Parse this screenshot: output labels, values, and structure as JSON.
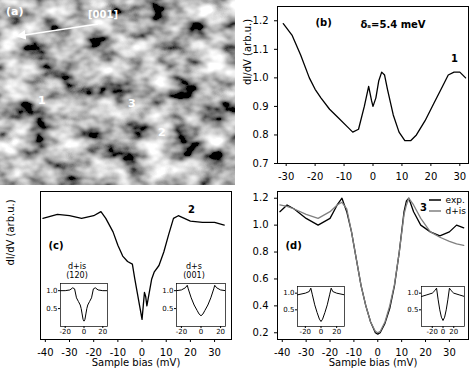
{
  "chart_data": [
    {
      "type": "image",
      "panel_label": "(a)",
      "direction_label": "[001]",
      "point_labels": [
        "1",
        "3",
        "2"
      ]
    },
    {
      "type": "line",
      "panel_label": "(b)",
      "annotation": "δₛ=5.4 meV",
      "curve_label": "1",
      "ylabel": "dI/dV (arb.u.)",
      "color": "#000000",
      "x": [
        -31,
        -28,
        -25,
        -22,
        -20,
        -18,
        -15,
        -12,
        -9,
        -7,
        -5,
        -3,
        -1.5,
        -0.5,
        0,
        1,
        2,
        3,
        4,
        5,
        7,
        9,
        11,
        13,
        15,
        18,
        21,
        24,
        26,
        28,
        30,
        32
      ],
      "values": [
        1.19,
        1.15,
        1.08,
        1.0,
        0.96,
        0.93,
        0.89,
        0.86,
        0.83,
        0.81,
        0.82,
        0.9,
        0.97,
        0.92,
        0.9,
        0.93,
        0.99,
        1.02,
        1.01,
        0.96,
        0.87,
        0.81,
        0.78,
        0.78,
        0.8,
        0.85,
        0.91,
        0.97,
        1.01,
        1.02,
        1.02,
        1.0
      ],
      "xlim": [
        -33,
        33
      ],
      "xticks": [
        -30,
        -20,
        -10,
        0,
        10,
        20,
        30
      ],
      "ylim": [
        0.7,
        1.25
      ],
      "yticks": [
        0.7,
        0.8,
        0.9,
        {
          "value": 1,
          "label": "1.0"
        },
        1.1,
        1.2
      ]
    },
    {
      "type": "line",
      "panel_label": "(c)",
      "curve_label": "2",
      "xlabel": "Sample bias (mV)",
      "ylabel": "dI/dV (arb.u.)",
      "color": "#000000",
      "x": [
        -41,
        -35,
        -30,
        -25,
        -20,
        -17,
        -15,
        -12,
        -10,
        -8,
        -6,
        -4,
        -3,
        -2,
        -1,
        0,
        0.5,
        1,
        1.5,
        2,
        2.5,
        3,
        4,
        5,
        7,
        9,
        11,
        13,
        15,
        20,
        25,
        30,
        34
      ],
      "values": [
        1.0,
        1.03,
        1.02,
        1.0,
        1.02,
        1.05,
        1.0,
        0.9,
        0.8,
        0.72,
        0.68,
        0.66,
        0.55,
        0.45,
        0.35,
        0.25,
        0.35,
        0.45,
        0.42,
        0.35,
        0.4,
        0.45,
        0.55,
        0.6,
        0.65,
        0.75,
        0.88,
        1.0,
        1.02,
        0.98,
        0.97,
        0.97,
        0.95
      ],
      "xlim": [
        -42,
        37
      ],
      "xticks": [
        -40,
        -30,
        -20,
        -10,
        0,
        10,
        20,
        30
      ],
      "ylim": [
        0.1,
        1.2
      ],
      "tick_labels": "x",
      "insets": [
        {
          "type": "line",
          "title": "d+is",
          "subtitle": "(120)",
          "color": "#000000",
          "x": [
            -25,
            -20,
            -15,
            -12,
            -10,
            -8,
            -6,
            -4,
            -3,
            -2,
            -1,
            0,
            1,
            2,
            3,
            4,
            6,
            8,
            10,
            12,
            15,
            20,
            25
          ],
          "values": [
            1.0,
            1.0,
            1.02,
            1.08,
            1.05,
            0.8,
            0.7,
            0.6,
            0.5,
            0.35,
            0.2,
            0.15,
            0.2,
            0.35,
            0.5,
            0.6,
            0.7,
            0.8,
            1.05,
            1.08,
            1.02,
            1.0,
            1.0
          ],
          "xlim": [
            -25,
            25
          ],
          "xticks": [
            -20,
            0,
            20
          ],
          "ylim": [
            0,
            1.2
          ],
          "yticks": [
            0.5,
            {
              "value": 1,
              "label": "1.0"
            }
          ]
        },
        {
          "type": "line",
          "title": "d+s",
          "subtitle": "(001)",
          "color": "#000000",
          "x": [
            -25,
            -20,
            -16,
            -14,
            -13,
            -10,
            -7,
            -4,
            -2,
            0,
            2,
            4,
            7,
            10,
            13,
            14,
            16,
            20,
            25
          ],
          "values": [
            1.0,
            1.02,
            1.08,
            1.15,
            1.05,
            0.8,
            0.6,
            0.45,
            0.35,
            0.3,
            0.35,
            0.45,
            0.6,
            0.8,
            1.05,
            1.15,
            1.08,
            1.02,
            1.0
          ],
          "xlim": [
            -25,
            25
          ],
          "xticks": [
            -20,
            0,
            20
          ],
          "ylim": [
            0,
            1.2
          ],
          "yticks": [
            0.5,
            {
              "value": 1,
              "label": "1.0"
            }
          ]
        }
      ]
    },
    {
      "type": "line",
      "panel_label": "(d)",
      "curve_label": "3",
      "xlabel": "Sample bias (mV)",
      "legend": "top-right",
      "x": [
        -41,
        -38,
        -35,
        -30,
        -25,
        -20,
        -17,
        -15,
        -13,
        -11,
        -9,
        -7,
        -5,
        -3,
        -1,
        0,
        1,
        3,
        5,
        7,
        9,
        11,
        12,
        13,
        15,
        18,
        22,
        26,
        30,
        33,
        36
      ],
      "series": [
        {
          "name": "exp.",
          "color": "#000000",
          "line_style": "solid",
          "values": [
            1.1,
            1.15,
            1.12,
            1.05,
            1.0,
            1.05,
            1.15,
            1.2,
            1.1,
            0.95,
            0.75,
            0.55,
            0.4,
            0.28,
            0.2,
            0.19,
            0.2,
            0.27,
            0.38,
            0.55,
            0.8,
            1.1,
            1.18,
            1.2,
            1.1,
            1.0,
            0.95,
            0.92,
            0.95,
            1.0,
            0.98
          ]
        },
        {
          "name": "d+is",
          "color": "#808080",
          "line_style": "solid",
          "values": [
            1.15,
            1.14,
            1.12,
            1.08,
            1.05,
            1.1,
            1.15,
            1.17,
            1.12,
            0.95,
            0.75,
            0.55,
            0.4,
            0.28,
            0.21,
            0.2,
            0.21,
            0.28,
            0.4,
            0.56,
            0.8,
            1.08,
            1.15,
            1.2,
            1.15,
            1.05,
            0.95,
            0.91,
            0.88,
            0.86,
            0.85
          ]
        }
      ],
      "xlim": [
        -42,
        38
      ],
      "xticks": [
        -40,
        -30,
        -20,
        -10,
        0,
        10,
        20,
        30
      ],
      "ylim": [
        0.15,
        1.25
      ],
      "yticks": [
        0.2,
        0.4,
        0.6,
        0.8,
        {
          "value": 1,
          "label": "1.0"
        },
        1.2
      ],
      "insets": [
        {
          "type": "line",
          "color": "#000000",
          "x": [
            -30,
            -20,
            -15,
            -13,
            -11,
            -8,
            -5,
            -2,
            0,
            2,
            5,
            8,
            11,
            13,
            15,
            20,
            30
          ],
          "values": [
            0.95,
            1.0,
            1.05,
            1.15,
            0.95,
            0.65,
            0.42,
            0.22,
            0.15,
            0.22,
            0.42,
            0.65,
            0.95,
            1.15,
            1.05,
            1.0,
            0.95
          ],
          "xlim": [
            -30,
            30
          ],
          "xticks": [
            -20,
            0,
            20
          ],
          "ylim": [
            0,
            1.2
          ],
          "yticks": [
            0.5,
            {
              "value": 1,
              "label": "1.0"
            }
          ]
        },
        {
          "type": "line",
          "color": "#000000",
          "x": [
            -40,
            -30,
            -20,
            -15,
            -12,
            -9,
            -6,
            -3,
            0,
            3,
            6,
            9,
            12,
            15,
            20,
            30,
            40
          ],
          "values": [
            0.9,
            0.95,
            1.0,
            1.08,
            1.15,
            0.8,
            0.5,
            0.28,
            0.18,
            0.28,
            0.5,
            0.8,
            1.15,
            1.08,
            1.0,
            0.95,
            0.9
          ],
          "xlim": [
            -40,
            40
          ],
          "xticks": [
            -20,
            0,
            20
          ],
          "ylim": [
            0,
            1.2
          ],
          "yticks": [
            0.5,
            {
              "value": 1,
              "label": "1.0"
            }
          ]
        }
      ]
    }
  ]
}
